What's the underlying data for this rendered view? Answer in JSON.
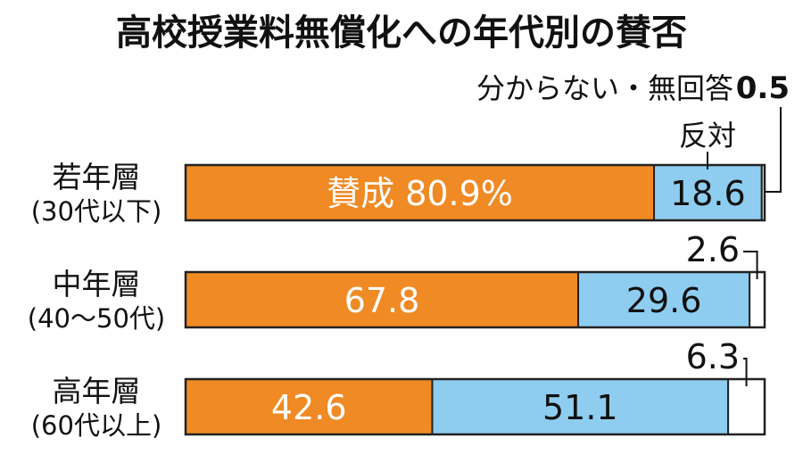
{
  "chart_data": {
    "type": "bar",
    "orientation": "horizontal-stacked-100",
    "title": "高校授業料無償化への年代別の賛否",
    "categories": [
      {
        "name": "若年層",
        "sub": "(30代以下)"
      },
      {
        "name": "中年層",
        "sub": "(40〜50代)"
      },
      {
        "name": "高年層",
        "sub": "(60代以上)"
      }
    ],
    "series": [
      {
        "name": "賛成",
        "color": "#f08a24",
        "values": [
          80.9,
          67.8,
          42.6
        ]
      },
      {
        "name": "反対",
        "color": "#8ecdf0",
        "values": [
          18.6,
          29.6,
          51.1
        ]
      },
      {
        "name": "分からない・無回答",
        "color": "#ffffff",
        "values": [
          0.5,
          2.6,
          6.3
        ]
      }
    ],
    "value_labels": [
      [
        "賛成 80.9%",
        "18.6",
        "0.5"
      ],
      [
        "67.8",
        "29.6",
        "2.6"
      ],
      [
        "42.6",
        "51.1",
        "6.3"
      ]
    ],
    "legend_annotations": {
      "against": "反対",
      "unknown": "分からない・無回答"
    },
    "xlim": [
      0,
      100
    ]
  }
}
